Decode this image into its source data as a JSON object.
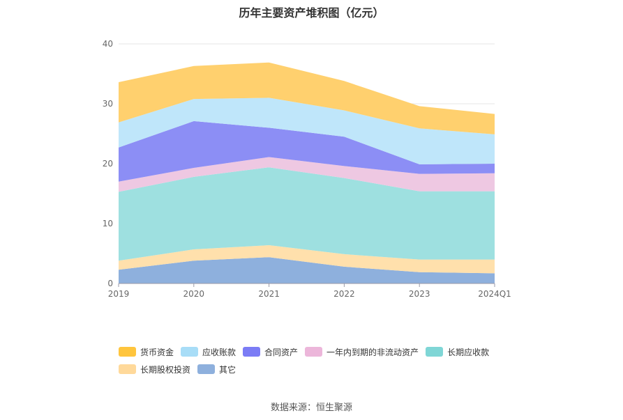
{
  "chart_data": {
    "type": "area",
    "stacked": true,
    "title": "历年主要资产堆积图（亿元）",
    "categories": [
      "2019",
      "2020",
      "2021",
      "2022",
      "2023",
      "2024Q1"
    ],
    "ylim": [
      0,
      40
    ],
    "yticks": [
      "0",
      "10",
      "20",
      "30",
      "40"
    ],
    "grid": true,
    "legend_position": "bottom",
    "series": [
      {
        "name": "其它",
        "color": "#8eb0dd",
        "values": [
          2.3,
          3.8,
          4.4,
          2.8,
          1.9,
          1.7
        ]
      },
      {
        "name": "长期股权投资",
        "color": "#ffe0ac",
        "values": [
          1.5,
          1.9,
          2.0,
          2.1,
          2.1,
          2.3
        ]
      },
      {
        "name": "长期应收款",
        "color": "#9ee0e0",
        "values": [
          11.5,
          12.1,
          13.0,
          12.7,
          11.4,
          11.4
        ]
      },
      {
        "name": "一年内到期的非流动资产",
        "color": "#eec8e2",
        "values": [
          1.7,
          1.5,
          1.7,
          2.0,
          2.9,
          3.0
        ]
      },
      {
        "name": "合同资产",
        "color": "#8c8ef5",
        "values": [
          5.7,
          7.8,
          4.9,
          4.9,
          1.6,
          1.6
        ]
      },
      {
        "name": "应收账款",
        "color": "#bfe6fa",
        "values": [
          4.2,
          3.7,
          5.0,
          4.4,
          6.0,
          4.9
        ]
      },
      {
        "name": "货币资金",
        "color": "#ffd06e",
        "values": [
          6.7,
          5.5,
          5.9,
          4.9,
          3.7,
          3.4
        ]
      }
    ],
    "legend_order": [
      "货币资金",
      "应收账款",
      "合同资产",
      "一年内到期的非流动资产",
      "长期应收款",
      "长期股权投资",
      "其它"
    ],
    "legend_colors": {
      "货币资金": "#ffc53d",
      "应收账款": "#a8ddf7",
      "合同资产": "#7b7cf5",
      "一年内到期的非流动资产": "#ecb6da",
      "长期应收款": "#7fd6d6",
      "长期股权投资": "#ffd99a",
      "其它": "#8eb0dd"
    }
  },
  "source": "数据来源：恒生聚源"
}
